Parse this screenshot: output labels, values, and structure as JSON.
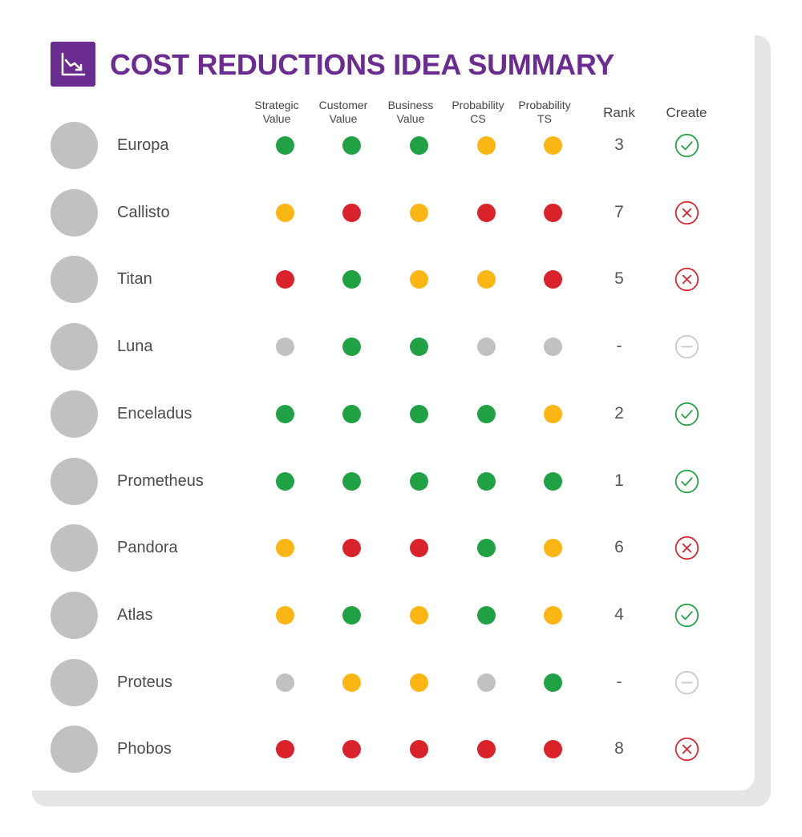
{
  "header": {
    "title": "COST REDUCTIONS IDEA SUMMARY",
    "icon": "trending-down-chart-icon"
  },
  "columns": [
    {
      "key": "strategic",
      "label": "Strategic Value"
    },
    {
      "key": "customer",
      "label": "Customer Value"
    },
    {
      "key": "business",
      "label": "Business Value"
    },
    {
      "key": "prob_cs",
      "label": "Probability CS"
    },
    {
      "key": "prob_ts",
      "label": "Probability TS"
    },
    {
      "key": "rank",
      "label": "Rank"
    },
    {
      "key": "create",
      "label": "Create"
    }
  ],
  "status_colors": {
    "green": "#20a144",
    "amber": "#fbb614",
    "red": "#d9222a",
    "gray": "#c1c1c3"
  },
  "create_icons": {
    "check": {
      "icon": "check-circle-icon",
      "color": "#20a144"
    },
    "cross": {
      "icon": "x-circle-icon",
      "color": "#d9222a"
    },
    "minus": {
      "icon": "minus-circle-icon",
      "color": "#c8c8c8"
    }
  },
  "accent_color": "#6b2c91",
  "rows": [
    {
      "name": "Europa",
      "ratings": [
        "green",
        "green",
        "green",
        "amber",
        "amber"
      ],
      "rank": "3",
      "create": "check"
    },
    {
      "name": "Callisto",
      "ratings": [
        "amber",
        "red",
        "amber",
        "red",
        "red"
      ],
      "rank": "7",
      "create": "cross"
    },
    {
      "name": "Titan",
      "ratings": [
        "red",
        "green",
        "amber",
        "amber",
        "red"
      ],
      "rank": "5",
      "create": "cross"
    },
    {
      "name": "Luna",
      "ratings": [
        "gray",
        "green",
        "green",
        "gray",
        "gray"
      ],
      "rank": "-",
      "create": "minus"
    },
    {
      "name": "Enceladus",
      "ratings": [
        "green",
        "green",
        "green",
        "green",
        "amber"
      ],
      "rank": "2",
      "create": "check"
    },
    {
      "name": "Prometheus",
      "ratings": [
        "green",
        "green",
        "green",
        "green",
        "green"
      ],
      "rank": "1",
      "create": "check"
    },
    {
      "name": "Pandora",
      "ratings": [
        "amber",
        "red",
        "red",
        "green",
        "amber"
      ],
      "rank": "6",
      "create": "cross"
    },
    {
      "name": "Atlas",
      "ratings": [
        "amber",
        "green",
        "amber",
        "green",
        "amber"
      ],
      "rank": "4",
      "create": "check"
    },
    {
      "name": "Proteus",
      "ratings": [
        "gray",
        "amber",
        "amber",
        "gray",
        "green"
      ],
      "rank": "-",
      "create": "minus"
    },
    {
      "name": "Phobos",
      "ratings": [
        "red",
        "red",
        "red",
        "red",
        "red"
      ],
      "rank": "8",
      "create": "cross"
    }
  ]
}
